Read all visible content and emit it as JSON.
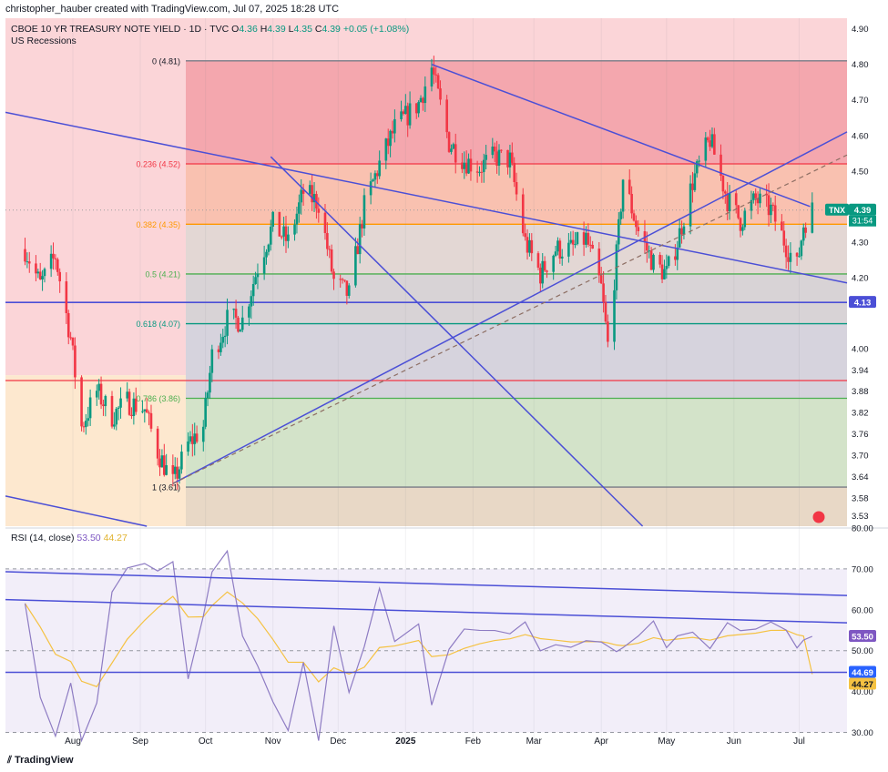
{
  "caption": "christopher_hauber created with TradingView.com, Jul 07, 2025 18:28 UTC",
  "brand": "TradingView",
  "main_header": {
    "symbol": "CBOE 10 YR TREASURY NOTE YIELD · 1D · TVC",
    "o_label": "O",
    "o": "4.36",
    "h_label": "H",
    "h": "4.39",
    "l_label": "L",
    "l": "4.35",
    "c_label": "C",
    "c": "4.39",
    "change": "+0.05 (+1.08%)",
    "indicator": "US Recessions"
  },
  "rsi_header": {
    "label": "RSI (14, close)",
    "rsi": "53.50",
    "ma": "44.27"
  },
  "badges": {
    "ticker": "TNX",
    "price": "4.39",
    "countdown": "31:54",
    "level_413": "4.13",
    "rsi": "53.50",
    "rsi_ma": "44.27",
    "rsi_line": "44.69"
  },
  "colors": {
    "up": "#089981",
    "down": "#f23645",
    "trend": "#4b4fd6",
    "rsi": "#8e7cc3",
    "rsi_ma": "#f5c242",
    "fib_0": "#f4a7ae",
    "fib_236": "#f9c1b0",
    "fib_382": "#e3d7d4",
    "fib_5": "#d8d3d6",
    "fib_618": "#d6d3dd",
    "fib_786": "#d3e3c9",
    "fib_1": "#e8d8c6"
  },
  "chart_data": [
    {
      "type": "candlestick",
      "title": "CBOE 10 YR TREASURY NOTE YIELD",
      "ylim": [
        3.5,
        4.93
      ],
      "yticks": [
        "4.90",
        "4.80",
        "4.70",
        "4.60",
        "4.50",
        "4.30",
        "4.20",
        "4.00",
        "3.94",
        "3.88",
        "3.82",
        "3.76",
        "3.70",
        "3.64",
        "3.58",
        "3.53"
      ],
      "xticks": [
        "Aug",
        "Sep",
        "Oct",
        "Nov",
        "Dec",
        "2025",
        "Feb",
        "Mar",
        "Apr",
        "May",
        "Jun",
        "Jul"
      ],
      "close_path": [
        [
          "2024-07-10",
          4.28
        ],
        [
          "2024-07-17",
          4.18
        ],
        [
          "2024-07-24",
          4.26
        ],
        [
          "2024-07-31",
          4.03
        ],
        [
          "2024-08-05",
          3.78
        ],
        [
          "2024-08-12",
          3.88
        ],
        [
          "2024-08-19",
          3.81
        ],
        [
          "2024-08-26",
          3.85
        ],
        [
          "2024-09-03",
          3.83
        ],
        [
          "2024-09-09",
          3.71
        ],
        [
          "2024-09-16",
          3.62
        ],
        [
          "2024-09-23",
          3.73
        ],
        [
          "2024-09-30",
          3.78
        ],
        [
          "2024-10-04",
          3.98
        ],
        [
          "2024-10-11",
          4.08
        ],
        [
          "2024-10-18",
          4.08
        ],
        [
          "2024-10-25",
          4.23
        ],
        [
          "2024-11-01",
          4.35
        ],
        [
          "2024-11-08",
          4.3
        ],
        [
          "2024-11-15",
          4.44
        ],
        [
          "2024-11-22",
          4.41
        ],
        [
          "2024-11-29",
          4.19
        ],
        [
          "2024-12-06",
          4.15
        ],
        [
          "2024-12-13",
          4.4
        ],
        [
          "2024-12-20",
          4.52
        ],
        [
          "2024-12-27",
          4.62
        ],
        [
          "2025-01-07",
          4.69
        ],
        [
          "2025-01-13",
          4.79
        ],
        [
          "2025-01-21",
          4.58
        ],
        [
          "2025-01-28",
          4.53
        ],
        [
          "2025-02-04",
          4.51
        ],
        [
          "2025-02-11",
          4.54
        ],
        [
          "2025-02-18",
          4.53
        ],
        [
          "2025-02-25",
          4.3
        ],
        [
          "2025-03-04",
          4.21
        ],
        [
          "2025-03-11",
          4.28
        ],
        [
          "2025-03-18",
          4.28
        ],
        [
          "2025-03-25",
          4.31
        ],
        [
          "2025-04-01",
          4.17
        ],
        [
          "2025-04-04",
          4.01
        ],
        [
          "2025-04-08",
          4.26
        ],
        [
          "2025-04-11",
          4.48
        ],
        [
          "2025-04-18",
          4.33
        ],
        [
          "2025-04-25",
          4.24
        ],
        [
          "2025-05-01",
          4.21
        ],
        [
          "2025-05-06",
          4.3
        ],
        [
          "2025-05-13",
          4.47
        ],
        [
          "2025-05-21",
          4.59
        ],
        [
          "2025-05-29",
          4.42
        ],
        [
          "2025-06-04",
          4.36
        ],
        [
          "2025-06-11",
          4.42
        ],
        [
          "2025-06-18",
          4.39
        ],
        [
          "2025-06-25",
          4.29
        ],
        [
          "2025-06-30",
          4.23
        ],
        [
          "2025-07-03",
          4.35
        ],
        [
          "2025-07-07",
          4.39
        ]
      ],
      "fibonacci": [
        {
          "label": "0 (4.81)",
          "level": 4.81
        },
        {
          "label": "0.236 (4.52)",
          "level": 4.52
        },
        {
          "label": "0.382 (4.35)",
          "level": 4.35
        },
        {
          "label": "0.5 (4.21)",
          "level": 4.21
        },
        {
          "label": "0.618 (4.07)",
          "level": 4.07
        },
        {
          "label": "0.786 (3.86)",
          "level": 3.86
        },
        {
          "label": "1 (3.61)",
          "level": 3.61
        }
      ],
      "horizontal_lines": [
        4.13,
        3.91
      ]
    },
    {
      "type": "line",
      "title": "RSI (14, close)",
      "ylim": [
        27,
        80
      ],
      "yticks": [
        "80.00",
        "70.00",
        "60.00",
        "50.00",
        "40.00",
        "30.00"
      ],
      "bands": [
        70,
        50,
        30
      ],
      "series": [
        {
          "name": "RSI",
          "last": 53.5
        },
        {
          "name": "MA",
          "last": 44.27
        }
      ]
    }
  ]
}
